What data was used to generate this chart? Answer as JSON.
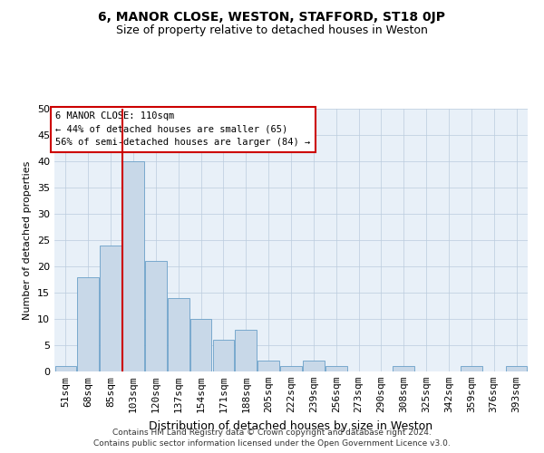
{
  "title": "6, MANOR CLOSE, WESTON, STAFFORD, ST18 0JP",
  "subtitle": "Size of property relative to detached houses in Weston",
  "xlabel": "Distribution of detached houses by size in Weston",
  "ylabel": "Number of detached properties",
  "categories": [
    "51sqm",
    "68sqm",
    "85sqm",
    "103sqm",
    "120sqm",
    "137sqm",
    "154sqm",
    "171sqm",
    "188sqm",
    "205sqm",
    "222sqm",
    "239sqm",
    "256sqm",
    "273sqm",
    "290sqm",
    "308sqm",
    "325sqm",
    "342sqm",
    "359sqm",
    "376sqm",
    "393sqm"
  ],
  "values": [
    1,
    18,
    24,
    40,
    21,
    14,
    10,
    6,
    8,
    2,
    1,
    2,
    1,
    0,
    0,
    1,
    0,
    0,
    1,
    0,
    1
  ],
  "bar_color": "#c8d8e8",
  "bar_edge_color": "#6aa0c8",
  "grid_color": "#bbccdd",
  "background_color": "#e8f0f8",
  "vline_color": "#cc0000",
  "vline_index": 3,
  "annotation_text_line1": "6 MANOR CLOSE: 110sqm",
  "annotation_text_line2": "← 44% of detached houses are smaller (65)",
  "annotation_text_line3": "56% of semi-detached houses are larger (84) →",
  "annotation_box_color": "#ffffff",
  "annotation_box_edge": "#cc0000",
  "ylim": [
    0,
    50
  ],
  "yticks": [
    0,
    5,
    10,
    15,
    20,
    25,
    30,
    35,
    40,
    45,
    50
  ],
  "title_fontsize": 10,
  "subtitle_fontsize": 9,
  "footer1": "Contains HM Land Registry data © Crown copyright and database right 2024.",
  "footer2": "Contains public sector information licensed under the Open Government Licence v3.0."
}
